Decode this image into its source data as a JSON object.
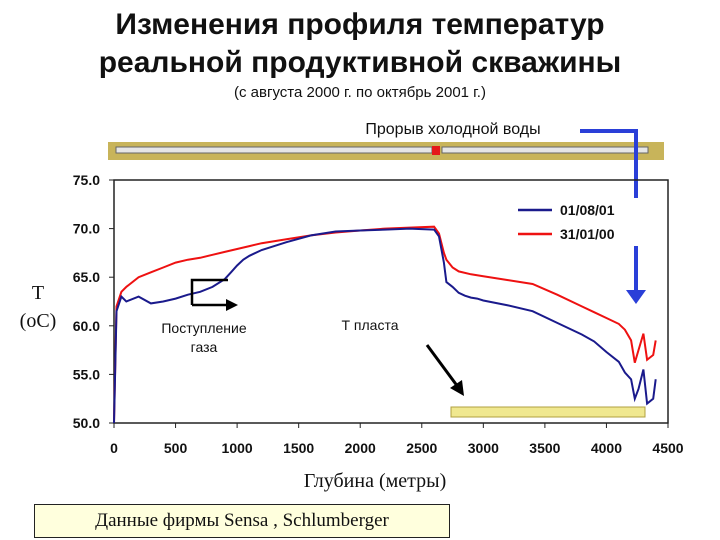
{
  "header": {
    "title_line1": "Изменения профиля температур",
    "title_line2": "реальной продуктивной скважины",
    "subtitle": "(с августа 2000 г. по октябрь 2001 г.)"
  },
  "annotations": {
    "breakthrough": "Прорыв холодной воды",
    "gas_inflow_line1": "Поступление",
    "gas_inflow_line2": "газа",
    "formation_temp": "Т пласта"
  },
  "axis": {
    "y_label_line1": "T",
    "y_label_line2": "(oC)"
  },
  "source": "Данные фирмы Sensa , Schlumberger",
  "colors": {
    "series_aug01": "#1a1a8c",
    "series_jan00": "#ee1111",
    "well_bar": "#c8b45a",
    "arrow_blue": "#2a3fd8",
    "formation_bar": "#f0e890"
  },
  "chart_data": {
    "type": "line",
    "title": "Изменения профиля температур реальной продуктивной скважины",
    "subtitle": "(с августа 2000 г. по октябрь 2001 г.)",
    "xlabel": "Глубина (метры)",
    "ylabel": "T (oC)",
    "xlim": [
      0,
      4500
    ],
    "ylim": [
      50,
      75
    ],
    "x_ticks": [
      "0",
      "500",
      "1000",
      "1500",
      "2000",
      "2500",
      "3000",
      "3500",
      "4000",
      "4500"
    ],
    "y_ticks": [
      "50.0",
      "55.0",
      "60.0",
      "65.0",
      "70.0",
      "75.0"
    ],
    "grid": false,
    "legend": "top-right",
    "series": [
      {
        "name": "01/08/01",
        "x": [
          0,
          20,
          60,
          100,
          200,
          300,
          400,
          500,
          600,
          700,
          800,
          900,
          950,
          1000,
          1050,
          1100,
          1200,
          1400,
          1600,
          1800,
          2000,
          2200,
          2400,
          2600,
          2640,
          2680,
          2700,
          2750,
          2800,
          2850,
          2900,
          2950,
          3000,
          3200,
          3400,
          3600,
          3800,
          3900,
          4000,
          4100,
          4150,
          4200,
          4230,
          4260,
          4300,
          4330,
          4380,
          4400
        ],
        "y": [
          50,
          61.5,
          63,
          62.5,
          63,
          62.3,
          62.5,
          62.8,
          63.2,
          63.5,
          64,
          64.8,
          65.5,
          66.2,
          66.8,
          67.2,
          67.8,
          68.6,
          69.3,
          69.7,
          69.8,
          69.9,
          70.0,
          69.9,
          69.2,
          66.5,
          64.5,
          64,
          63.4,
          63.1,
          62.9,
          62.8,
          62.6,
          62.1,
          61.5,
          60.3,
          59.1,
          58.4,
          57.3,
          56.3,
          55.2,
          54.5,
          52.5,
          53.5,
          55.5,
          52.0,
          52.5,
          54.5
        ]
      },
      {
        "name": "31/01/00",
        "x": [
          0,
          20,
          60,
          100,
          200,
          300,
          400,
          500,
          600,
          700,
          800,
          900,
          1000,
          1100,
          1200,
          1400,
          1600,
          1800,
          2000,
          2200,
          2400,
          2600,
          2640,
          2680,
          2700,
          2750,
          2800,
          2900,
          3000,
          3200,
          3400,
          3600,
          3800,
          3900,
          4000,
          4100,
          4150,
          4200,
          4230,
          4260,
          4300,
          4330,
          4380,
          4400
        ],
        "y": [
          50,
          62,
          63.5,
          64,
          65,
          65.5,
          66,
          66.5,
          66.8,
          67,
          67.3,
          67.6,
          67.9,
          68.2,
          68.5,
          68.9,
          69.3,
          69.6,
          69.8,
          70,
          70.1,
          70.2,
          69.5,
          67.5,
          66.8,
          66.0,
          65.6,
          65.3,
          65.1,
          64.7,
          64.3,
          63.2,
          62.0,
          61.4,
          60.8,
          60.2,
          59.6,
          58.5,
          56.2,
          57.5,
          59.2,
          56.5,
          57.0,
          58.5
        ]
      }
    ]
  }
}
